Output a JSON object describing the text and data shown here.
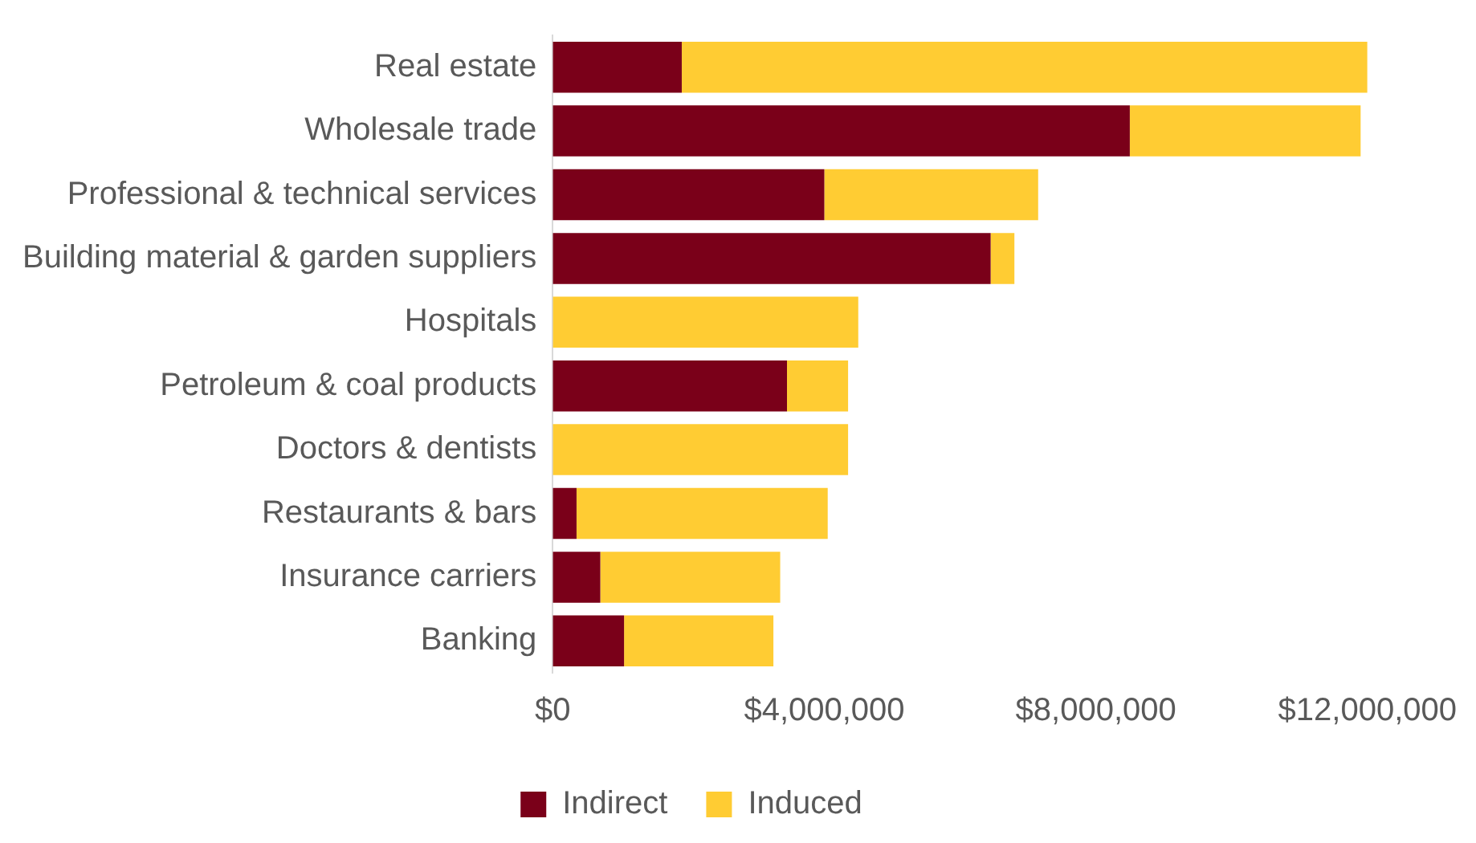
{
  "chart_data": {
    "type": "bar",
    "orientation": "horizontal",
    "stacked": true,
    "categories": [
      "Real estate",
      "Wholesale trade",
      "Professional & technical services",
      "Building material & garden suppliers",
      "Hospitals",
      "Petroleum & coal products",
      "Doctors & dentists",
      "Restaurants & bars",
      "Insurance carriers",
      "Banking"
    ],
    "series": [
      {
        "name": "Indirect",
        "color": "#7a0019",
        "values": [
          1900000,
          8500000,
          4000000,
          6450000,
          0,
          3450000,
          0,
          350000,
          700000,
          1050000
        ]
      },
      {
        "name": "Induced",
        "color": "#ffcc33",
        "values": [
          10100000,
          3400000,
          3150000,
          350000,
          4500000,
          900000,
          4350000,
          3700000,
          2650000,
          2200000
        ]
      }
    ],
    "xlim": [
      0,
      12000000
    ],
    "xticks": [
      {
        "value": 0,
        "label": "$0"
      },
      {
        "value": 4000000,
        "label": "$4,000,000"
      },
      {
        "value": 8000000,
        "label": "$8,000,000"
      },
      {
        "value": 12000000,
        "label": "$12,000,000"
      }
    ],
    "grid": false,
    "legend": "bottom"
  }
}
